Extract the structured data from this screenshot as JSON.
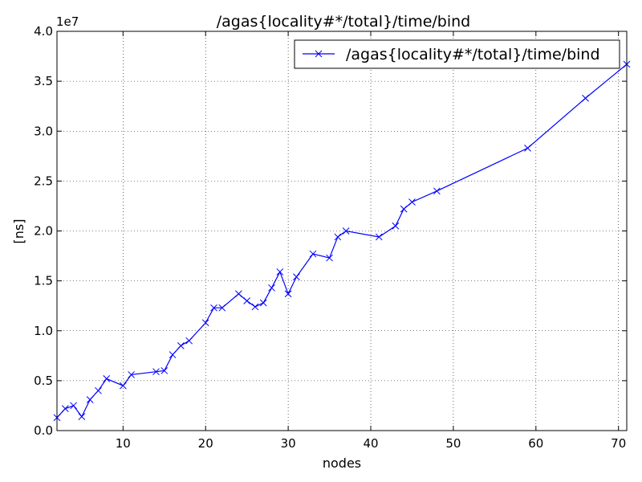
{
  "chart_data": {
    "type": "line",
    "title": "/agas{locality#*/total}/time/bind",
    "xlabel": "nodes",
    "ylabel": "[ns]",
    "y_scale_label": "1e7",
    "xlim": [
      2,
      71
    ],
    "ylim": [
      0,
      4.0
    ],
    "x_ticks": [
      10,
      20,
      30,
      40,
      50,
      60,
      70
    ],
    "x_tick_labels": [
      "10",
      "20",
      "30",
      "40",
      "50",
      "60",
      "70"
    ],
    "y_ticks": [
      0,
      0.5,
      1.0,
      1.5,
      2.0,
      2.5,
      3.0,
      3.5,
      4.0
    ],
    "y_tick_labels": [
      "0.0",
      "0.5",
      "1.0",
      "1.5",
      "2.0",
      "2.5",
      "3.0",
      "3.5",
      "4.0"
    ],
    "grid": true,
    "legend_position": "top-right",
    "series": [
      {
        "name": "/agas{locality#*/total}/time/bind",
        "color": "#0000ff",
        "marker": "x",
        "points": [
          [
            2,
            0.13
          ],
          [
            3,
            0.22
          ],
          [
            4,
            0.25
          ],
          [
            5,
            0.14
          ],
          [
            6,
            0.31
          ],
          [
            7,
            0.4
          ],
          [
            8,
            0.52
          ],
          [
            10,
            0.45
          ],
          [
            11,
            0.56
          ],
          [
            14,
            0.59
          ],
          [
            15,
            0.6
          ],
          [
            16,
            0.76
          ],
          [
            17,
            0.85
          ],
          [
            18,
            0.9
          ],
          [
            20,
            1.08
          ],
          [
            21,
            1.23
          ],
          [
            22,
            1.23
          ],
          [
            24,
            1.37
          ],
          [
            25,
            1.3
          ],
          [
            26,
            1.24
          ],
          [
            27,
            1.28
          ],
          [
            28,
            1.43
          ],
          [
            29,
            1.59
          ],
          [
            30,
            1.37
          ],
          [
            31,
            1.54
          ],
          [
            33,
            1.77
          ],
          [
            35,
            1.73
          ],
          [
            36,
            1.94
          ],
          [
            37,
            2.0
          ],
          [
            41,
            1.94
          ],
          [
            43,
            2.05
          ],
          [
            44,
            2.22
          ],
          [
            45,
            2.29
          ],
          [
            48,
            2.4
          ],
          [
            59,
            2.83
          ],
          [
            66,
            3.33
          ],
          [
            71,
            3.67
          ]
        ]
      }
    ]
  }
}
